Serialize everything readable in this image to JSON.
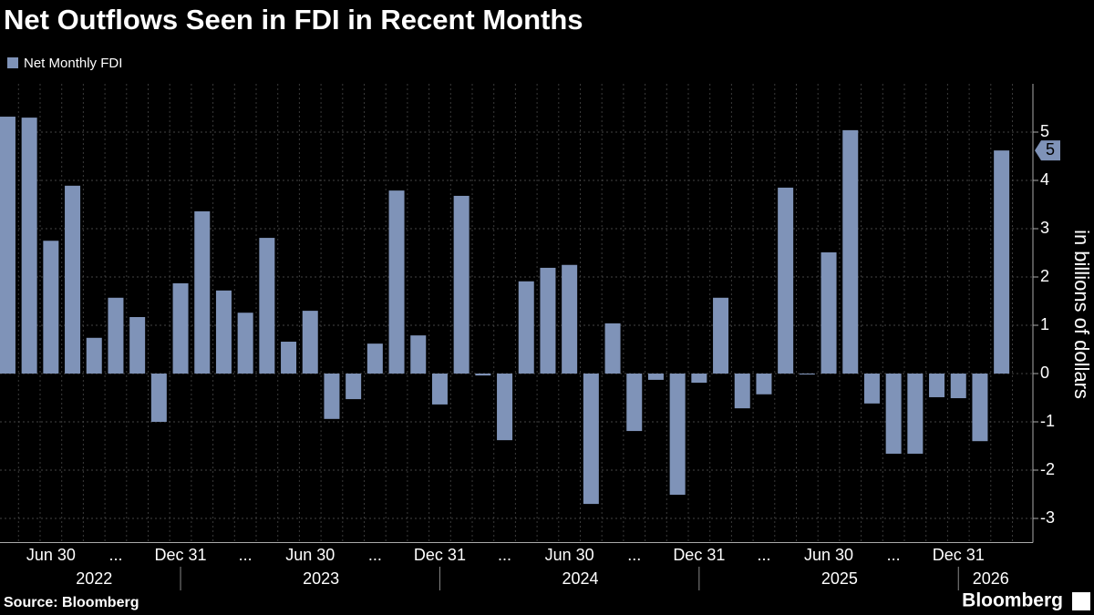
{
  "chart_data": {
    "type": "bar",
    "title": "Net Outflows Seen in FDI in Recent Months",
    "y_label": "in billions of dollars",
    "source": "Source: Bloomberg",
    "brand": "Bloomberg",
    "series": [
      {
        "name": "Net Monthly FDI",
        "color": "#7f93b8",
        "values": [
          5.32,
          5.3,
          2.75,
          3.89,
          0.74,
          1.57,
          1.17,
          -1.0,
          1.87,
          3.36,
          1.72,
          1.26,
          2.81,
          0.66,
          1.3,
          -0.94,
          -0.53,
          0.62,
          3.79,
          0.79,
          -0.64,
          3.68,
          -0.04,
          -1.38,
          1.91,
          2.19,
          2.25,
          -2.7,
          1.04,
          -1.19,
          -0.13,
          -2.51,
          -0.19,
          1.57,
          -0.72,
          -0.43,
          3.85,
          -0.02,
          2.51,
          5.04,
          -0.62,
          -1.66,
          -1.66,
          -0.49,
          -0.51,
          -1.4,
          4.62
        ],
        "value_labels": [
          null,
          null,
          null,
          null,
          null,
          null,
          null,
          null,
          null,
          null,
          null,
          null,
          null,
          null,
          null,
          null,
          null,
          null,
          null,
          null,
          null,
          null,
          null,
          null,
          null,
          null,
          null,
          null,
          null,
          null,
          null,
          null,
          null,
          null,
          null,
          null,
          null,
          null,
          null,
          null,
          null,
          null,
          null,
          null,
          null,
          null,
          "5"
        ]
      }
    ],
    "categories": [
      null,
      null,
      "Jun 30",
      null,
      null,
      "...",
      null,
      null,
      "Dec 31",
      null,
      null,
      "...",
      null,
      null,
      "Jun 30",
      null,
      null,
      "...",
      null,
      null,
      "Dec 31",
      null,
      null,
      "...",
      null,
      null,
      "Jun 30",
      null,
      null,
      "...",
      null,
      null,
      "Dec 31",
      null,
      null,
      "...",
      null,
      null,
      "Jun 30",
      null,
      null,
      "...",
      null,
      null,
      "Dec 31",
      null,
      null
    ],
    "x_groups": [
      "2022",
      "2022",
      "2022",
      "2022",
      "2022",
      "2022",
      "2022",
      "2022",
      "2022",
      "2023",
      "2023",
      "2023",
      "2023",
      "2023",
      "2023",
      "2023",
      "2023",
      "2023",
      "2023",
      "2023",
      "2023",
      "2024",
      "2024",
      "2024",
      "2024",
      "2024",
      "2024",
      "2024",
      "2024",
      "2024",
      "2024",
      "2024",
      "2024",
      "2025",
      "2025",
      "2025",
      "2025",
      "2025",
      "2025",
      "2025",
      "2025",
      "2025",
      "2025",
      "2025",
      "2025",
      "2026",
      "2026"
    ],
    "ylim": [
      -3.5,
      6
    ],
    "yticks": [
      -3,
      -2,
      -1,
      0,
      1,
      2,
      3,
      4,
      5
    ],
    "grid": true
  }
}
